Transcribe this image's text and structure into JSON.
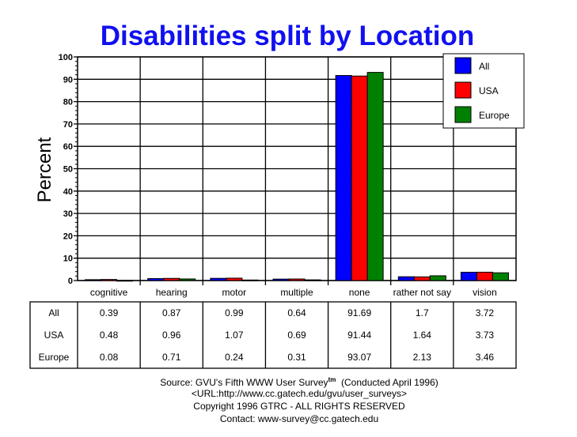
{
  "chart_data": {
    "type": "bar",
    "title": "Disabilities split by Location",
    "xlabel": "",
    "ylabel": "Percent",
    "ylim": [
      0,
      100
    ],
    "yticks": [
      0,
      10,
      20,
      30,
      40,
      50,
      60,
      70,
      80,
      90,
      100
    ],
    "grid": true,
    "legend_position": "top-right",
    "categories": [
      "cognitive",
      "hearing",
      "motor",
      "multiple",
      "none",
      "rather not say",
      "vision"
    ],
    "series": [
      {
        "name": "All",
        "color": "#0000ff",
        "values": [
          0.39,
          0.87,
          0.99,
          0.64,
          91.69,
          1.7,
          3.72
        ],
        "labels": [
          "0.39",
          "0.87",
          "0.99",
          "0.64",
          "91.69",
          "1.7",
          "3.72"
        ]
      },
      {
        "name": "USA",
        "color": "#ff0000",
        "values": [
          0.48,
          0.96,
          1.07,
          0.69,
          91.44,
          1.64,
          3.73
        ],
        "labels": [
          "0.48",
          "0.96",
          "1.07",
          "0.69",
          "91.44",
          "1.64",
          "3.73"
        ]
      },
      {
        "name": "Europe",
        "color": "#008000",
        "values": [
          0.08,
          0.71,
          0.24,
          0.31,
          93.07,
          2.13,
          3.46
        ],
        "labels": [
          "0.08",
          "0.71",
          "0.24",
          "0.31",
          "93.07",
          "2.13",
          "3.46"
        ]
      }
    ]
  },
  "footer": {
    "source": "Source: GVU's Fifth WWW User Survey",
    "tm": "tm",
    "conducted": "  (Conducted April 1996)",
    "url": "<URL:http://www.cc.gatech.edu/gvu/user_surveys>",
    "copyright": "Copyright 1996 GTRC -  ALL RIGHTS RESERVED",
    "contact": "Contact: www-survey@cc.gatech.edu"
  }
}
